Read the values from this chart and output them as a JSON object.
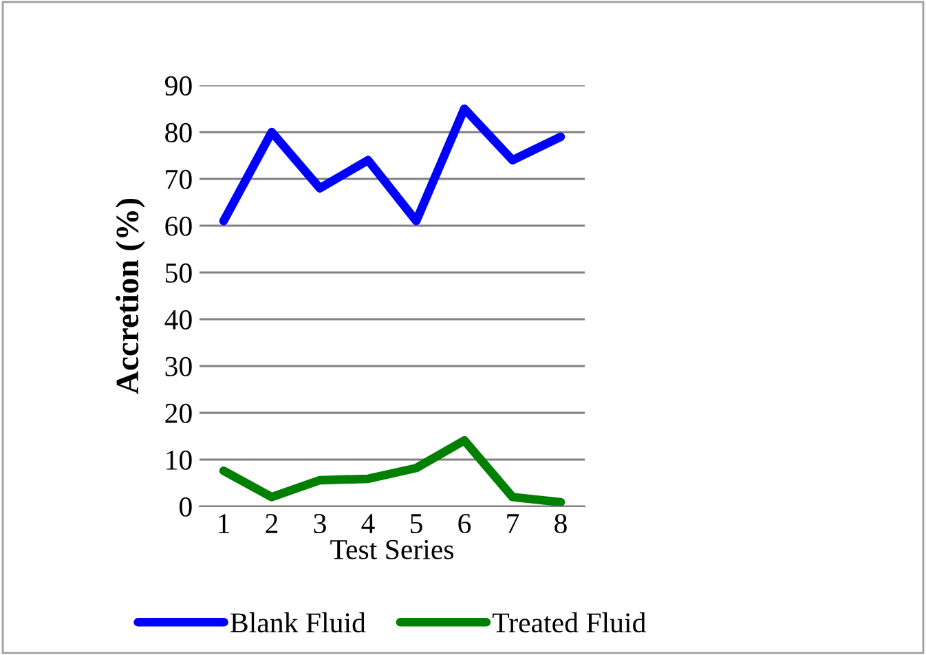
{
  "chart_data": {
    "type": "line",
    "xlabel": "Test Series",
    "ylabel": "Accretion (%)",
    "categories": [
      "1",
      "2",
      "3",
      "4",
      "5",
      "6",
      "7",
      "8"
    ],
    "series": [
      {
        "name": "Blank Fluid",
        "color": "#0000ff",
        "values": [
          61,
          80,
          68,
          74,
          61,
          85,
          74,
          79
        ]
      },
      {
        "name": "Treated Fluid",
        "color": "#008000",
        "values": [
          7.6,
          2,
          5.6,
          5.9,
          8.2,
          14.1,
          2,
          0.9
        ]
      }
    ],
    "ylim": [
      0,
      90
    ],
    "yticks": [
      0,
      10,
      20,
      30,
      40,
      50,
      60,
      70,
      80,
      90
    ],
    "grid": "y",
    "legend": "bottom",
    "marker": "none",
    "line_style": "solid"
  }
}
